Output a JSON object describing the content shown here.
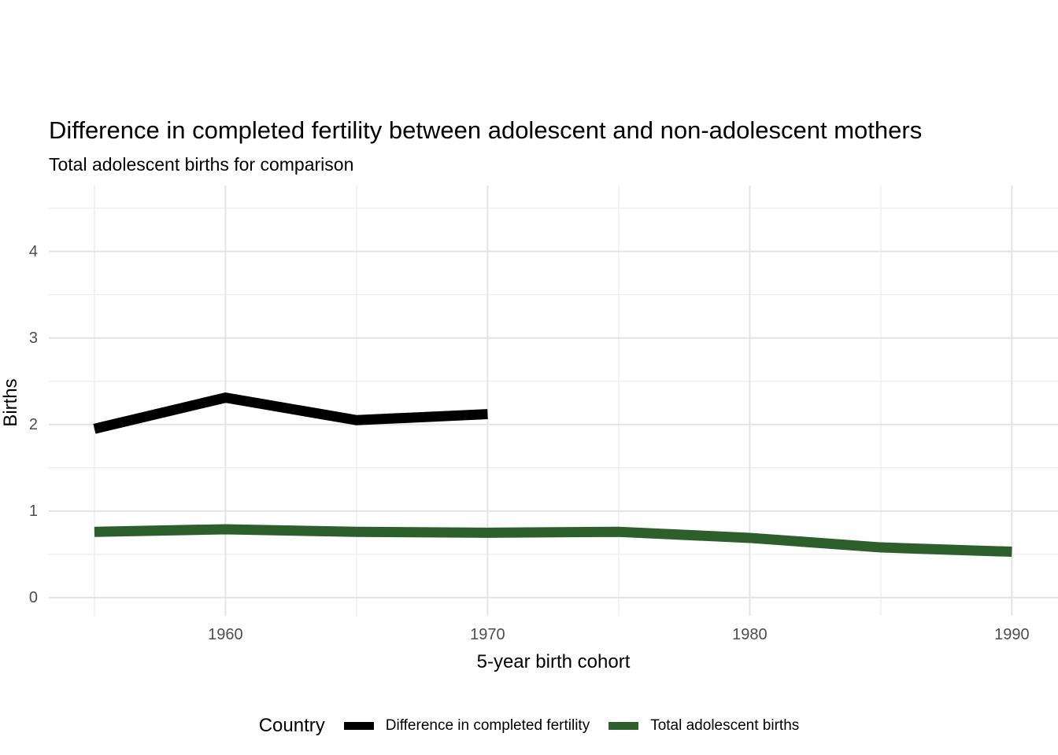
{
  "title": "Difference in completed fertility between adolescent and non-adolescent mothers",
  "subtitle": "Total adolescent births for comparison",
  "axes": {
    "x": {
      "title": "5-year birth cohort",
      "ticks": [
        1960,
        1970,
        1980,
        1990
      ],
      "minor_ticks": [
        1955,
        1965,
        1975,
        1985
      ],
      "range": [
        1953.26,
        1991.76
      ]
    },
    "y": {
      "title": "Births",
      "ticks": [
        0,
        1,
        2,
        3,
        4
      ],
      "minor_ticks": [
        0.5,
        1.5,
        2.5,
        3.5,
        4.5
      ],
      "range": [
        -0.21,
        4.76
      ]
    }
  },
  "legend": {
    "title": "Country"
  },
  "colors": {
    "series_black": "#000000",
    "series_green": "#2d5f2d",
    "grid_major": "#e4e4e4",
    "grid_minor": "#efefef",
    "tick_label": "#4d4d4d"
  },
  "chart_data": {
    "type": "line",
    "title": "Difference in completed fertility between adolescent and non-adolescent mothers",
    "subtitle": "Total adolescent births for comparison",
    "xlabel": "5-year birth cohort",
    "ylabel": "Births",
    "xlim": [
      1953.26,
      1991.76
    ],
    "ylim": [
      -0.21,
      4.76
    ],
    "grid": true,
    "legend_position": "bottom",
    "legend_title": "Country",
    "x": [
      1955,
      1960,
      1965,
      1970,
      1975,
      1980,
      1985,
      1990
    ],
    "series": [
      {
        "name": "Difference in completed fertility",
        "color": "#000000",
        "x": [
          1955,
          1960,
          1965,
          1970
        ],
        "values": [
          1.95,
          2.31,
          2.05,
          2.12
        ]
      },
      {
        "name": "Total adolescent births",
        "color": "#2d5f2d",
        "x": [
          1955,
          1960,
          1965,
          1970,
          1975,
          1980,
          1985,
          1990
        ],
        "values": [
          0.76,
          0.79,
          0.76,
          0.75,
          0.76,
          0.69,
          0.58,
          0.53
        ]
      }
    ]
  }
}
